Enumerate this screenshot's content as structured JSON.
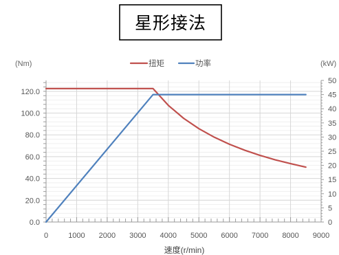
{
  "title": "星形接法",
  "chart_data": {
    "type": "line",
    "title": "星形接法",
    "xlabel": "速度(r/min)",
    "ylabel": "(Nm)",
    "ylabel_right": "(kW)",
    "xlim": [
      0,
      9000
    ],
    "ylim": [
      0,
      130
    ],
    "y2lim": [
      0,
      50
    ],
    "xticks": [
      "0",
      "1000",
      "2000",
      "3000",
      "4000",
      "5000",
      "6000",
      "7000",
      "8000",
      "9000"
    ],
    "yticks": [
      "0.0",
      "20.0",
      "40.0",
      "60.0",
      "80.0",
      "100.0",
      "120.0"
    ],
    "y2ticks": [
      "0",
      "5",
      "10",
      "15",
      "20",
      "25",
      "30",
      "35",
      "40",
      "45",
      "50"
    ],
    "grid": true,
    "legend_position": "top-center",
    "series": [
      {
        "name": "扭矩",
        "axis": "left",
        "color": "#c0504d",
        "points": [
          [
            0,
            122.5
          ],
          [
            500,
            122.5
          ],
          [
            1000,
            122.5
          ],
          [
            1500,
            122.5
          ],
          [
            2000,
            122.5
          ],
          [
            2500,
            122.5
          ],
          [
            3000,
            122.5
          ],
          [
            3500,
            122.5
          ],
          [
            4000,
            107.1
          ],
          [
            4500,
            95.2
          ],
          [
            5000,
            85.7
          ],
          [
            5500,
            77.9
          ],
          [
            6000,
            71.4
          ],
          [
            6500,
            65.9
          ],
          [
            7000,
            61.2
          ],
          [
            7500,
            57.1
          ],
          [
            8000,
            53.6
          ],
          [
            8500,
            50.4
          ]
        ]
      },
      {
        "name": "功率",
        "axis": "right",
        "color": "#4f81bd",
        "points": [
          [
            0,
            0
          ],
          [
            3500,
            45
          ],
          [
            4000,
            45
          ],
          [
            5000,
            45
          ],
          [
            6000,
            45
          ],
          [
            7000,
            45
          ],
          [
            8000,
            45
          ],
          [
            8500,
            45
          ]
        ]
      }
    ]
  }
}
